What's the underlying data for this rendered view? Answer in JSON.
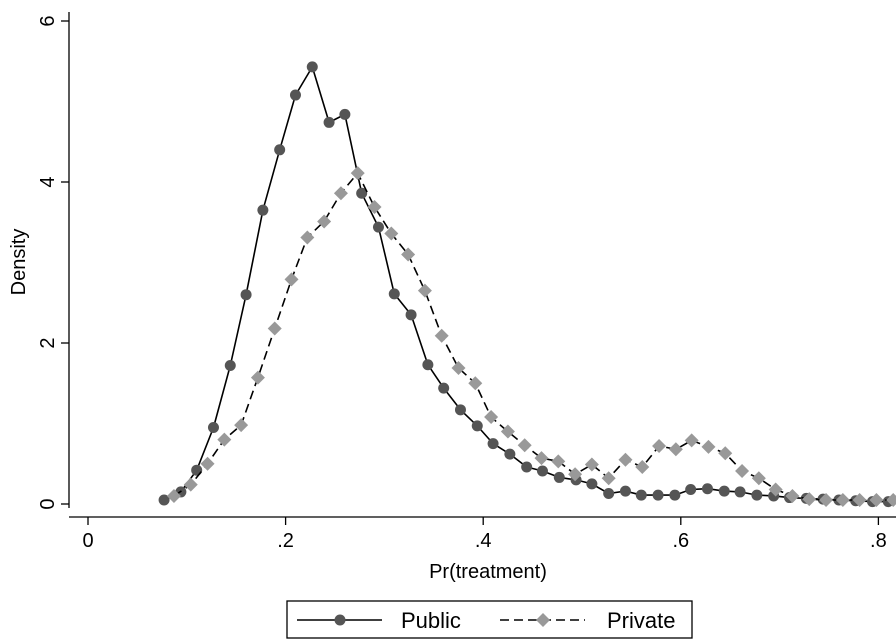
{
  "chart_data": {
    "type": "line",
    "title": "",
    "xlabel": "Pr(treatment)",
    "ylabel": "Density",
    "xlim": [
      0,
      0.82
    ],
    "ylim": [
      0,
      6
    ],
    "x_ticks": [
      0,
      0.2,
      0.4,
      0.6,
      0.8
    ],
    "x_tick_labels": [
      "0",
      ".2",
      ".4",
      ".6",
      ".8"
    ],
    "y_ticks": [
      0,
      2,
      4,
      6
    ],
    "y_tick_labels": [
      "0",
      "2",
      "4",
      "6"
    ],
    "grid": false,
    "legend_position": "bottom",
    "series": [
      {
        "name": "Public",
        "color": "#555555",
        "line_style": "solid",
        "marker": "circle",
        "x": [
          0.077,
          0.094,
          0.11,
          0.127,
          0.144,
          0.16,
          0.177,
          0.194,
          0.21,
          0.227,
          0.244,
          0.26,
          0.277,
          0.294,
          0.31,
          0.327,
          0.344,
          0.36,
          0.377,
          0.394,
          0.41,
          0.427,
          0.444,
          0.46,
          0.477,
          0.494,
          0.51,
          0.527,
          0.544,
          0.56,
          0.577,
          0.594,
          0.61,
          0.627,
          0.644,
          0.66,
          0.677,
          0.694,
          0.71,
          0.727,
          0.744,
          0.76,
          0.777,
          0.794,
          0.81
        ],
        "y": [
          0.05,
          0.15,
          0.42,
          0.95,
          1.72,
          2.6,
          3.65,
          4.4,
          5.08,
          5.43,
          4.74,
          4.84,
          3.86,
          3.44,
          2.61,
          2.35,
          1.73,
          1.44,
          1.17,
          0.97,
          0.75,
          0.62,
          0.46,
          0.41,
          0.33,
          0.3,
          0.25,
          0.13,
          0.16,
          0.11,
          0.11,
          0.11,
          0.18,
          0.19,
          0.16,
          0.15,
          0.11,
          0.1,
          0.08,
          0.07,
          0.06,
          0.05,
          0.04,
          0.03,
          0.03
        ]
      },
      {
        "name": "Private",
        "color": "#999999",
        "line_style": "dashed",
        "marker": "diamond",
        "x": [
          0.087,
          0.104,
          0.121,
          0.138,
          0.155,
          0.172,
          0.189,
          0.206,
          0.222,
          0.239,
          0.256,
          0.273,
          0.29,
          0.307,
          0.324,
          0.341,
          0.358,
          0.375,
          0.392,
          0.408,
          0.425,
          0.442,
          0.459,
          0.476,
          0.493,
          0.51,
          0.527,
          0.544,
          0.561,
          0.578,
          0.595,
          0.611,
          0.628,
          0.645,
          0.662,
          0.679,
          0.696,
          0.713,
          0.73,
          0.747,
          0.764,
          0.781,
          0.798,
          0.815
        ],
        "y": [
          0.1,
          0.24,
          0.5,
          0.8,
          0.98,
          1.57,
          2.18,
          2.79,
          3.31,
          3.51,
          3.86,
          4.11,
          3.69,
          3.36,
          3.1,
          2.65,
          2.09,
          1.69,
          1.5,
          1.08,
          0.9,
          0.73,
          0.57,
          0.53,
          0.37,
          0.49,
          0.32,
          0.55,
          0.46,
          0.72,
          0.68,
          0.79,
          0.71,
          0.63,
          0.41,
          0.32,
          0.18,
          0.1,
          0.06,
          0.05,
          0.05,
          0.05,
          0.05,
          0.05
        ]
      }
    ]
  }
}
